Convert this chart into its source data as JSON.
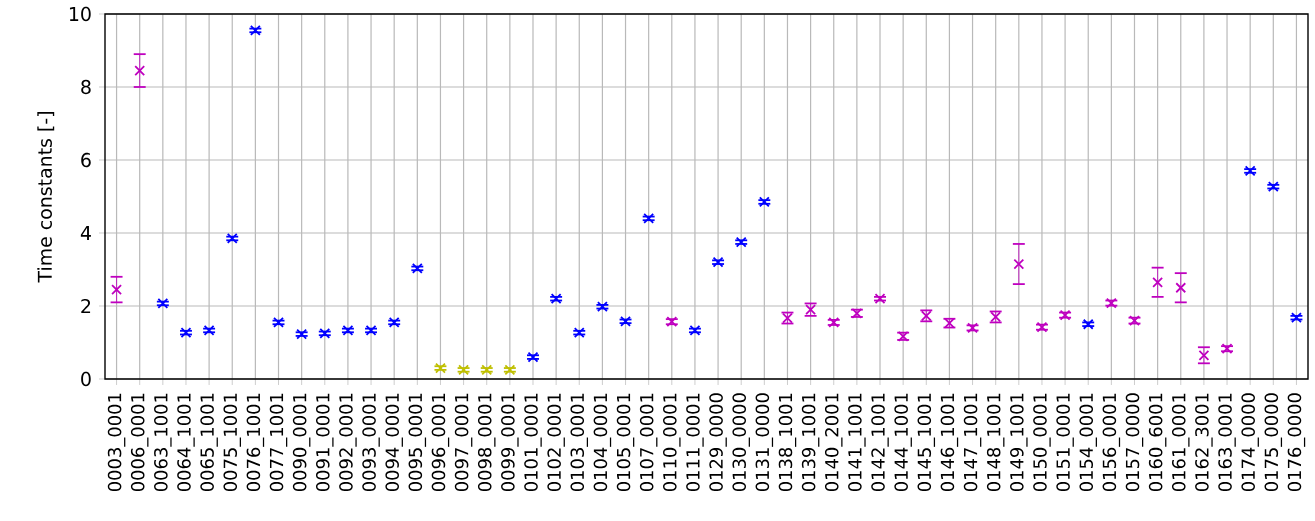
{
  "chart_data": {
    "type": "scatter",
    "ylabel": "Time constants [-]",
    "categories": [
      "0003_0001",
      "0006_0001",
      "0063_1001",
      "0064_1001",
      "0065_1001",
      "0075_1001",
      "0076_1001",
      "0077_1001",
      "0090_0001",
      "0091_0001",
      "0092_0001",
      "0093_0001",
      "0094_0001",
      "0095_0001",
      "0096_0001",
      "0097_0001",
      "0098_0001",
      "0099_0001",
      "0101_0001",
      "0102_0001",
      "0103_0001",
      "0104_0001",
      "0105_0001",
      "0107_0001",
      "0110_0001",
      "0111_0001",
      "0129_0000",
      "0130_0000",
      "0131_0000",
      "0138_1001",
      "0139_1001",
      "0140_2001",
      "0141_1001",
      "0142_1001",
      "0144_1001",
      "0145_1001",
      "0146_1001",
      "0147_1001",
      "0148_1001",
      "0149_1001",
      "0150_0001",
      "0151_0001",
      "0154_0001",
      "0156_0001",
      "0157_0000",
      "0160_6001",
      "0161_0001",
      "0162_3001",
      "0163_0001",
      "0174_0000",
      "0175_0000",
      "0176_0000"
    ],
    "values": [
      2.45,
      8.45,
      2.07,
      1.27,
      1.33,
      3.85,
      9.55,
      1.55,
      1.23,
      1.25,
      1.33,
      1.33,
      1.55,
      3.03,
      0.3,
      0.25,
      0.25,
      0.25,
      0.6,
      2.2,
      1.27,
      1.98,
      1.58,
      4.4,
      1.57,
      1.33,
      3.2,
      3.75,
      4.85,
      1.67,
      1.9,
      1.55,
      1.8,
      2.2,
      1.17,
      1.73,
      1.53,
      1.4,
      1.7,
      3.15,
      1.42,
      1.75,
      1.5,
      2.08,
      1.6,
      2.65,
      2.5,
      0.65,
      0.83,
      5.7,
      5.27,
      1.68
    ],
    "errors": [
      0.35,
      0.45,
      0.05,
      0.05,
      0.05,
      0.05,
      0.05,
      0.05,
      0.05,
      0.05,
      0.05,
      0.05,
      0.05,
      0.05,
      0.05,
      0.05,
      0.05,
      0.05,
      0.05,
      0.05,
      0.05,
      0.05,
      0.05,
      0.05,
      0.07,
      0.05,
      0.05,
      0.05,
      0.05,
      0.15,
      0.17,
      0.07,
      0.1,
      0.05,
      0.1,
      0.15,
      0.12,
      0.07,
      0.15,
      0.55,
      0.07,
      0.07,
      0.05,
      0.07,
      0.08,
      0.4,
      0.4,
      0.22,
      0.07,
      0.05,
      0.05,
      0.05
    ],
    "colors": [
      "#bf00bf",
      "#bf00bf",
      "#0000ff",
      "#0000ff",
      "#0000ff",
      "#0000ff",
      "#0000ff",
      "#0000ff",
      "#0000ff",
      "#0000ff",
      "#0000ff",
      "#0000ff",
      "#0000ff",
      "#0000ff",
      "#bfbf00",
      "#bfbf00",
      "#bfbf00",
      "#bfbf00",
      "#0000ff",
      "#0000ff",
      "#0000ff",
      "#0000ff",
      "#0000ff",
      "#0000ff",
      "#bf00bf",
      "#0000ff",
      "#0000ff",
      "#0000ff",
      "#0000ff",
      "#bf00bf",
      "#bf00bf",
      "#bf00bf",
      "#bf00bf",
      "#bf00bf",
      "#bf00bf",
      "#bf00bf",
      "#bf00bf",
      "#bf00bf",
      "#bf00bf",
      "#bf00bf",
      "#bf00bf",
      "#bf00bf",
      "#0000ff",
      "#bf00bf",
      "#bf00bf",
      "#bf00bf",
      "#bf00bf",
      "#bf00bf",
      "#bf00bf",
      "#0000ff",
      "#0000ff",
      "#0000ff"
    ],
    "ylim": [
      0,
      10
    ],
    "yticks": [
      0,
      2,
      4,
      6,
      8,
      10
    ],
    "grid": true,
    "marker": "cross"
  }
}
